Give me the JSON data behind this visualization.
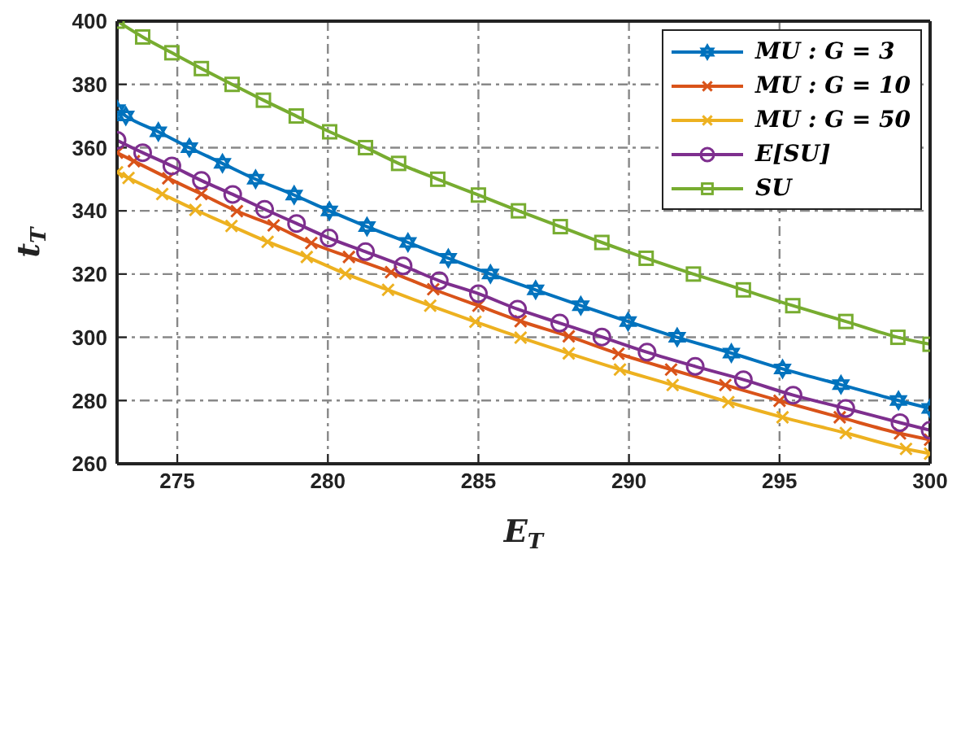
{
  "chart_data": {
    "type": "line",
    "xlabel": "E$_{T}$",
    "ylabel": "t$_{T}$",
    "xlim": [
      273,
      300
    ],
    "xticks": [
      275,
      280,
      285,
      290,
      295,
      300
    ],
    "ylim": [
      260,
      400
    ],
    "yticks": [
      260,
      280,
      300,
      320,
      340,
      360,
      380,
      400
    ],
    "grid": true,
    "legend": "top right",
    "line_style": "solid",
    "series": [
      {
        "name": "MU : G = 3",
        "color": "#0072bd",
        "marker": "star",
        "x": [
          273,
          273.29,
          274.37,
          275.4,
          276.5,
          277.6,
          278.88,
          280.05,
          281.3,
          282.66,
          284.0,
          285.4,
          286.9,
          288.4,
          289.97,
          291.6,
          293.4,
          295.1,
          297.04,
          298.95,
          300
        ],
        "values": [
          372,
          370,
          365,
          360,
          355,
          350,
          345,
          340,
          335,
          330,
          325,
          320,
          315,
          310,
          305,
          300,
          295,
          290,
          285,
          280,
          277.5
        ]
      },
      {
        "name": "MU : G = 10",
        "color": "#d95319",
        "marker": "cross",
        "x": [
          273,
          273.56,
          274.7,
          275.8,
          276.98,
          278.2,
          279.45,
          280.7,
          282.1,
          283.5,
          285.0,
          286.4,
          288.0,
          289.65,
          291.4,
          293.2,
          295.0,
          297.0,
          299.0,
          300
        ],
        "values": [
          358.4,
          355.7,
          350.3,
          345.3,
          339.9,
          335.4,
          329.8,
          325.4,
          320.6,
          315.2,
          310.0,
          305.1,
          300.3,
          294.8,
          289.8,
          284.9,
          279.9,
          274.7,
          269.6,
          267.6
        ]
      },
      {
        "name": "MU : G = 50",
        "color": "#edb120",
        "marker": "cross",
        "x": [
          273,
          273.38,
          274.5,
          275.6,
          276.8,
          278.0,
          279.3,
          280.58,
          282.0,
          283.4,
          284.9,
          286.4,
          288.0,
          289.7,
          291.45,
          293.3,
          295.1,
          297.2,
          299.2,
          300
        ],
        "values": [
          352.2,
          350.4,
          345.3,
          340.3,
          335.2,
          330.2,
          325.4,
          320.1,
          315.0,
          310.0,
          304.9,
          299.9,
          294.9,
          289.8,
          284.9,
          279.5,
          274.7,
          269.7,
          264.7,
          263.2
        ]
      },
      {
        "name": "E[SU]",
        "color": "#7e2f8e",
        "marker": "circle",
        "x": [
          273,
          273.85,
          274.82,
          275.8,
          276.84,
          277.9,
          278.96,
          280.04,
          281.25,
          282.5,
          283.7,
          285.0,
          286.3,
          287.7,
          289.1,
          290.6,
          292.2,
          293.8,
          295.45,
          297.2,
          299.0,
          300
        ],
        "values": [
          362.3,
          358.4,
          354.2,
          349.6,
          345.2,
          340.5,
          336.0,
          331.4,
          327.1,
          322.6,
          317.9,
          313.8,
          308.9,
          304.5,
          300.1,
          295.3,
          290.8,
          286.6,
          281.7,
          277.5,
          273.0,
          270.6
        ]
      },
      {
        "name": "SU",
        "color": "#77ac30",
        "marker": "square",
        "x": [
          273,
          273.85,
          274.82,
          275.8,
          276.82,
          277.86,
          278.95,
          280.06,
          281.25,
          282.35,
          283.65,
          285.0,
          286.33,
          287.72,
          289.1,
          290.57,
          292.14,
          293.8,
          295.44,
          297.2,
          298.93,
          300
        ],
        "values": [
          400,
          395,
          390,
          385,
          380,
          375,
          370,
          365,
          360,
          355,
          350,
          345,
          340,
          335,
          330,
          325,
          320,
          315,
          310,
          305,
          300,
          297.8
        ]
      }
    ]
  }
}
